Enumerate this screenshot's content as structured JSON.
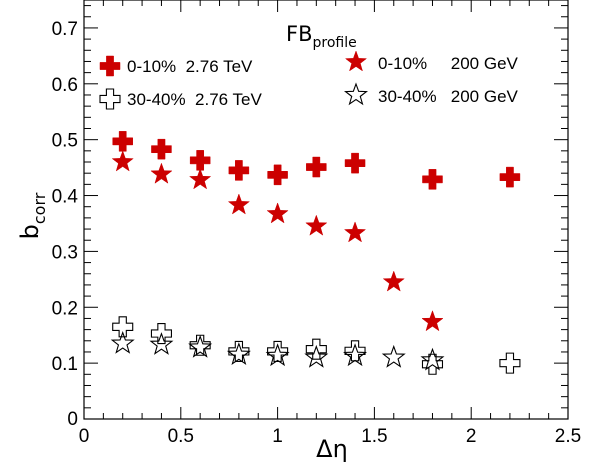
{
  "chart_data": {
    "type": "scatter",
    "title": "FB",
    "title_subscript": "profile",
    "xlabel": "Δη",
    "ylabel": "b",
    "ylabel_subscript": "corr",
    "xlim": [
      0,
      2.5
    ],
    "ylim": [
      0,
      0.75
    ],
    "x_ticks": [
      {
        "value": 0,
        "label": "0"
      },
      {
        "value": 0.5,
        "label": "0.5"
      },
      {
        "value": 1,
        "label": "1"
      },
      {
        "value": 1.5,
        "label": "1.5"
      },
      {
        "value": 2,
        "label": "2"
      },
      {
        "value": 2.5,
        "label": "2.5"
      }
    ],
    "y_ticks": [
      {
        "value": 0,
        "label": "0"
      },
      {
        "value": 0.1,
        "label": "0.1"
      },
      {
        "value": 0.2,
        "label": "0.2"
      },
      {
        "value": 0.3,
        "label": "0.3"
      },
      {
        "value": 0.4,
        "label": "0.4"
      },
      {
        "value": 0.5,
        "label": "0.5"
      },
      {
        "value": 0.6,
        "label": "0.6"
      },
      {
        "value": 0.7,
        "label": "0.7"
      }
    ],
    "grid": false,
    "legend_position": "top",
    "series": [
      {
        "name": "0-10%  2.76 TeV",
        "marker": "cross",
        "filled": true,
        "color": "#cc0000",
        "x": [
          0.2,
          0.4,
          0.6,
          0.8,
          1.0,
          1.2,
          1.4,
          1.8,
          2.2
        ],
        "y": [
          0.497,
          0.483,
          0.463,
          0.445,
          0.437,
          0.451,
          0.458,
          0.429,
          0.433
        ]
      },
      {
        "name": "30-40%  2.76 TeV",
        "marker": "cross",
        "filled": false,
        "color": "#000000",
        "x": [
          0.2,
          0.4,
          0.6,
          0.8,
          1.0,
          1.2,
          1.4,
          1.8,
          2.2
        ],
        "y": [
          0.165,
          0.153,
          0.132,
          0.121,
          0.121,
          0.125,
          0.122,
          0.098,
          0.1
        ]
      },
      {
        "name": "0-10%     200 GeV",
        "marker": "star",
        "filled": true,
        "color": "#cc0000",
        "x": [
          0.2,
          0.4,
          0.6,
          0.8,
          1.0,
          1.2,
          1.4,
          1.6,
          1.8
        ],
        "y": [
          0.46,
          0.438,
          0.428,
          0.383,
          0.367,
          0.345,
          0.333,
          0.245,
          0.174
        ]
      },
      {
        "name": "30-40%   200 GeV",
        "marker": "star",
        "filled": false,
        "color": "#000000",
        "x": [
          0.2,
          0.4,
          0.6,
          0.8,
          1.0,
          1.2,
          1.4,
          1.6,
          1.8
        ],
        "y": [
          0.135,
          0.133,
          0.128,
          0.115,
          0.113,
          0.11,
          0.113,
          0.11,
          0.105
        ]
      }
    ]
  }
}
